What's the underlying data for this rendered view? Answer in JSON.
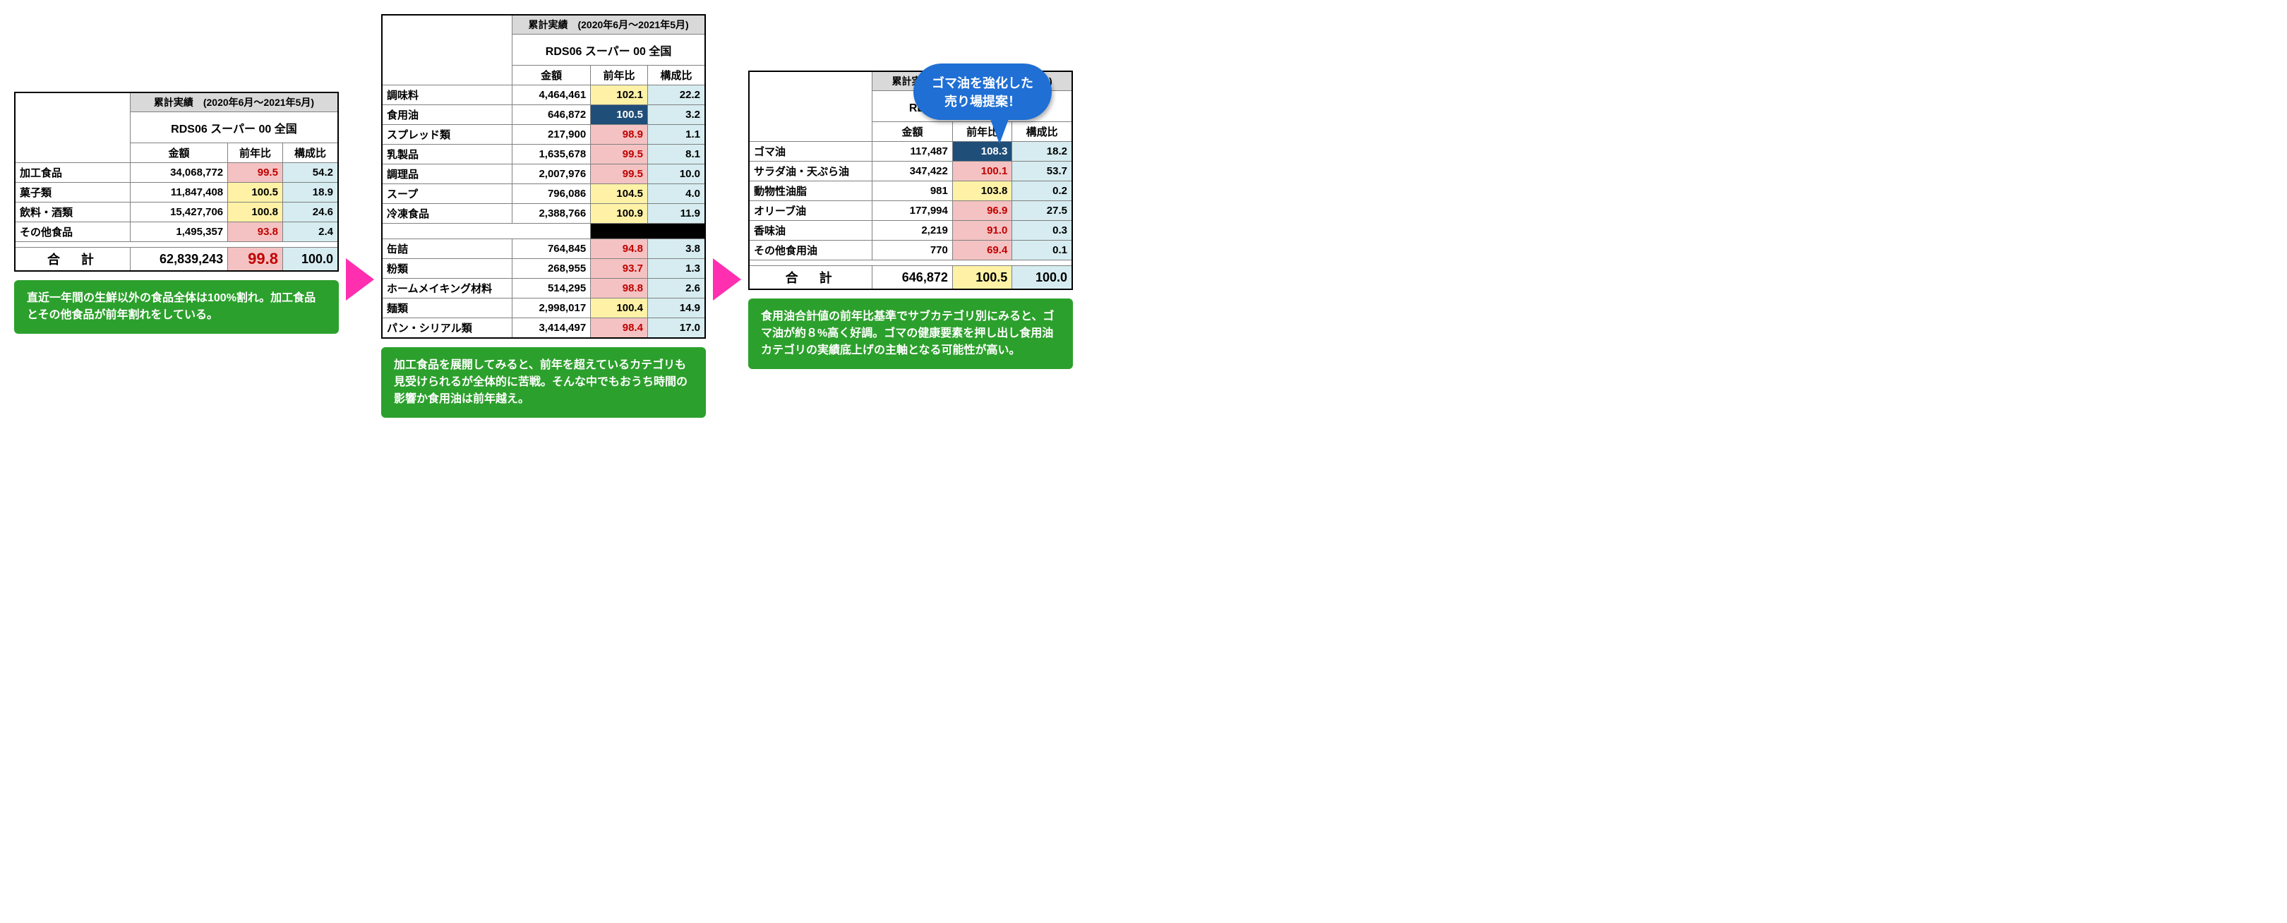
{
  "common": {
    "period_header": "累計実績　(2020年6月～2021年5月)",
    "store_header": "RDS06 スーパー  00 全国",
    "col_amount": "金額",
    "col_yoy": "前年比",
    "col_comp": "構成比",
    "total_label": "合計"
  },
  "callout": {
    "line1": "ゴマ油を強化した",
    "line2": "売り場提案！"
  },
  "table1": {
    "rows": [
      {
        "label": "加工食品",
        "amount": "34,068,772",
        "yoy": "99.5",
        "yoy_class": "yoy-pink",
        "comp": "54.2"
      },
      {
        "label": "菓子類",
        "amount": "11,847,408",
        "yoy": "100.5",
        "yoy_class": "yoy-yellow",
        "comp": "18.9"
      },
      {
        "label": "飲料・酒類",
        "amount": "15,427,706",
        "yoy": "100.8",
        "yoy_class": "yoy-yellow",
        "comp": "24.6"
      },
      {
        "label": "その他食品",
        "amount": "1,495,357",
        "yoy": "93.8",
        "yoy_class": "yoy-pink",
        "comp": "2.4"
      }
    ],
    "total": {
      "amount": "62,839,243",
      "yoy": "99.8",
      "yoy_class": "yoy-pink",
      "comp": "100.0"
    },
    "note": "直近一年間の生鮮以外の食品全体は100%割れ。加工食品とその他食品が前年割れをしている。"
  },
  "table2": {
    "rows_top": [
      {
        "label": "調味料",
        "amount": "4,464,461",
        "yoy": "102.1",
        "yoy_class": "yoy-yellow",
        "comp": "22.2"
      },
      {
        "label": "食用油",
        "amount": "646,872",
        "yoy": "100.5",
        "yoy_class": "yoy-blue",
        "comp": "3.2"
      },
      {
        "label": "スプレッド類",
        "amount": "217,900",
        "yoy": "98.9",
        "yoy_class": "yoy-pink",
        "comp": "1.1"
      },
      {
        "label": "乳製品",
        "amount": "1,635,678",
        "yoy": "99.5",
        "yoy_class": "yoy-pink",
        "comp": "8.1"
      },
      {
        "label": "調理品",
        "amount": "2,007,976",
        "yoy": "99.5",
        "yoy_class": "yoy-pink",
        "comp": "10.0"
      },
      {
        "label": "スープ",
        "amount": "796,086",
        "yoy": "104.5",
        "yoy_class": "yoy-yellow",
        "comp": "4.0"
      },
      {
        "label": "冷凍食品",
        "amount": "2,388,766",
        "yoy": "100.9",
        "yoy_class": "yoy-yellow",
        "comp": "11.9"
      }
    ],
    "rows_bottom": [
      {
        "label": "缶詰",
        "amount": "764,845",
        "yoy": "94.8",
        "yoy_class": "yoy-pink",
        "comp": "3.8"
      },
      {
        "label": "粉類",
        "amount": "268,955",
        "yoy": "93.7",
        "yoy_class": "yoy-pink",
        "comp": "1.3"
      },
      {
        "label": "ホームメイキング材料",
        "amount": "514,295",
        "yoy": "98.8",
        "yoy_class": "yoy-pink",
        "comp": "2.6"
      },
      {
        "label": "麺類",
        "amount": "2,998,017",
        "yoy": "100.4",
        "yoy_class": "yoy-yellow",
        "comp": "14.9"
      },
      {
        "label": "パン・シリアル類",
        "amount": "3,414,497",
        "yoy": "98.4",
        "yoy_class": "yoy-pink",
        "comp": "17.0"
      }
    ],
    "note": "加工食品を展開してみると、前年を超えているカテゴリも見受けられるが全体的に苦戦。そんな中でもおうち時間の影響か食用油は前年越え。"
  },
  "table3": {
    "rows": [
      {
        "label": "ゴマ油",
        "amount": "117,487",
        "yoy": "108.3",
        "yoy_class": "yoy-blue",
        "comp": "18.2"
      },
      {
        "label": "サラダ油・天ぷら油",
        "amount": "347,422",
        "yoy": "100.1",
        "yoy_class": "yoy-pink",
        "comp": "53.7"
      },
      {
        "label": "動物性油脂",
        "amount": "981",
        "yoy": "103.8",
        "yoy_class": "yoy-yellow",
        "comp": "0.2"
      },
      {
        "label": "オリーブ油",
        "amount": "177,994",
        "yoy": "96.9",
        "yoy_class": "yoy-pink",
        "comp": "27.5"
      },
      {
        "label": "香味油",
        "amount": "2,219",
        "yoy": "91.0",
        "yoy_class": "yoy-pink",
        "comp": "0.3"
      },
      {
        "label": "その他食用油",
        "amount": "770",
        "yoy": "69.4",
        "yoy_class": "yoy-pink",
        "comp": "0.1"
      }
    ],
    "total": {
      "amount": "646,872",
      "yoy": "100.5",
      "yoy_class": "yoy-yellow",
      "comp": "100.0"
    },
    "note": "食用油合計値の前年比基準でサブカテゴリ別にみると、ゴマ油が約８%高く好調。ゴマの健康要素を押し出し食用油カテゴリの実績底上げの主軸となる可能性が高い。"
  },
  "colors": {
    "header_bg": "#d9d9d9",
    "comp_bg": "#d6ecf0",
    "yoy_pink_bg": "#f4c2c2",
    "yoy_pink_fg": "#c00000",
    "yoy_yellow_bg": "#fff2a6",
    "yoy_blue_bg": "#1f4e79",
    "note_bg": "#2ca02c",
    "arrow": "#ff2fb0",
    "callout": "#1f6fd4"
  }
}
